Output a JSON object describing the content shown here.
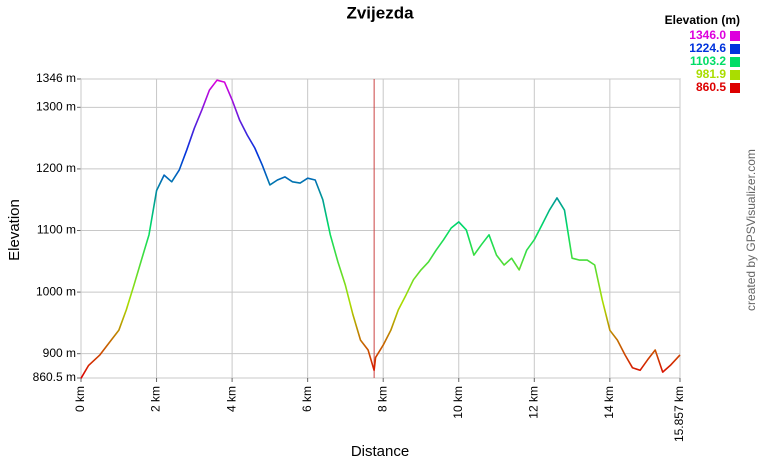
{
  "chart_data": {
    "type": "line",
    "title": "Zvijezda",
    "x_label": "Distance",
    "y_label": "Elevation",
    "credit": "created by GPSVisualizer.com",
    "legend_title": "Elevation (m)",
    "color_legend": [
      {
        "value": 1346,
        "label": "1346.0",
        "color": "#dd00dd"
      },
      {
        "value": 1224.6,
        "label": "1224.6",
        "color": "#0033dd"
      },
      {
        "value": 1103.2,
        "label": "1103.2",
        "color": "#00dd66"
      },
      {
        "value": 981.9,
        "label": "981.9",
        "color": "#aadd00"
      },
      {
        "value": 860.5,
        "label": "860.5",
        "color": "#dd0000"
      }
    ],
    "x": [
      0,
      0.2,
      0.5,
      0.8,
      1.0,
      1.2,
      1.4,
      1.6,
      1.8,
      2.0,
      2.2,
      2.4,
      2.6,
      2.8,
      3.0,
      3.2,
      3.4,
      3.6,
      3.8,
      4.0,
      4.2,
      4.4,
      4.6,
      4.8,
      5.0,
      5.2,
      5.4,
      5.6,
      5.8,
      6.0,
      6.2,
      6.4,
      6.6,
      6.8,
      7.0,
      7.2,
      7.4,
      7.6,
      7.76,
      7.8,
      8.0,
      8.2,
      8.4,
      8.6,
      8.8,
      9.0,
      9.2,
      9.4,
      9.6,
      9.8,
      10.0,
      10.2,
      10.4,
      10.6,
      10.8,
      11.0,
      11.2,
      11.4,
      11.6,
      11.8,
      12.0,
      12.2,
      12.4,
      12.6,
      12.8,
      13.0,
      13.2,
      13.4,
      13.6,
      13.8,
      14.0,
      14.2,
      14.4,
      14.6,
      14.8,
      15.0,
      15.2,
      15.4,
      15.6,
      15.857
    ],
    "values": [
      860,
      881,
      898,
      922,
      938,
      971,
      1011,
      1052,
      1093,
      1165,
      1190,
      1179,
      1198,
      1231,
      1266,
      1296,
      1328,
      1344,
      1341,
      1312,
      1279,
      1255,
      1234,
      1206,
      1174,
      1182,
      1187,
      1179,
      1177,
      1185,
      1182,
      1150,
      1093,
      1049,
      1011,
      963,
      922,
      906,
      873,
      894,
      914,
      938,
      971,
      995,
      1020,
      1036,
      1049,
      1068,
      1085,
      1104,
      1114,
      1101,
      1060,
      1077,
      1093,
      1060,
      1044,
      1055,
      1036,
      1068,
      1085,
      1109,
      1133,
      1153,
      1133,
      1055,
      1052,
      1052,
      1044,
      987,
      938,
      922,
      898,
      877,
      873,
      890,
      906,
      870,
      881,
      898
    ],
    "vline": {
      "x": 7.76,
      "color": "#cc4444"
    },
    "xlim": [
      0,
      15.857
    ],
    "ylim": [
      860.5,
      1346
    ],
    "xticks": [
      {
        "value": 0,
        "label": "0 km"
      },
      {
        "value": 2,
        "label": "2 km"
      },
      {
        "value": 4,
        "label": "4 km"
      },
      {
        "value": 6,
        "label": "6 km"
      },
      {
        "value": 8,
        "label": "8 km"
      },
      {
        "value": 10,
        "label": "10 km"
      },
      {
        "value": 12,
        "label": "12 km"
      },
      {
        "value": 14,
        "label": "14 km"
      },
      {
        "value": 15.857,
        "label": "15.857 km"
      }
    ],
    "yticks": [
      {
        "value": 860.5,
        "label": "860.5 m"
      },
      {
        "value": 900,
        "label": "900 m"
      },
      {
        "value": 1000,
        "label": "1000 m"
      },
      {
        "value": 1100,
        "label": "1100 m"
      },
      {
        "value": 1200,
        "label": "1200 m"
      },
      {
        "value": 1300,
        "label": "1300 m"
      },
      {
        "value": 1346,
        "label": "1346 m"
      }
    ],
    "grid": true
  }
}
